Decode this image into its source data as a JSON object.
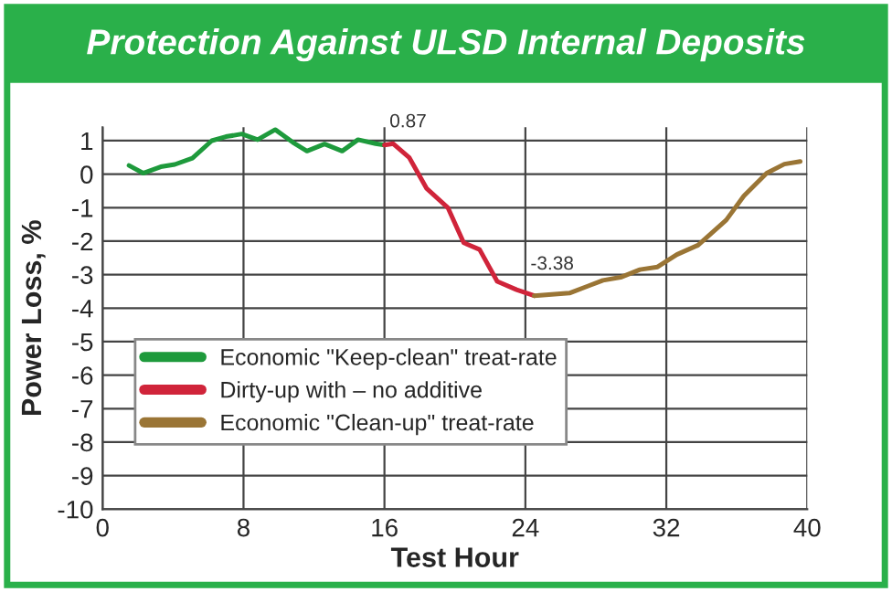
{
  "chart_data": {
    "type": "line",
    "title": "Protection Against ULSD Internal Deposits",
    "xlabel": "Test Hour",
    "ylabel": "Power Loss, %",
    "series": [
      {
        "name": "Economic \"Keep-clean\" treat-rate",
        "color": "#1e9a3c",
        "x": [
          1.5,
          2.3,
          3.3,
          4.1,
          5.1,
          6.2,
          7.0,
          7.9,
          8.8,
          9.8,
          10.8,
          11.6,
          12.6,
          13.6,
          14.5,
          15.5,
          16
        ],
        "values": [
          0.26,
          0.03,
          0.22,
          0.29,
          0.48,
          1.0,
          1.12,
          1.2,
          1.03,
          1.33,
          0.95,
          0.69,
          0.9,
          0.69,
          1.03,
          0.91,
          0.87
        ]
      },
      {
        "name": "Dirty-up with – no additive",
        "color": "#d0243a",
        "x": [
          16,
          16.5,
          17.4,
          18.4,
          19.6,
          20.5,
          21.4,
          22.4,
          23.5,
          24.5
        ],
        "values": [
          0.87,
          0.91,
          0.5,
          -0.43,
          -1.0,
          -2.05,
          -2.25,
          -3.2,
          -3.45,
          -3.63
        ]
      },
      {
        "name": "Economic \"Clean-up\" treat-rate",
        "color": "#9a7535",
        "x": [
          24.5,
          26.5,
          27.5,
          28.4,
          29.4,
          30.5,
          31.5,
          32.6,
          33.8,
          35.4,
          36.4,
          37.7,
          38.7,
          39.6
        ],
        "values": [
          -3.63,
          -3.55,
          -3.35,
          -3.17,
          -3.08,
          -2.85,
          -2.77,
          -2.4,
          -2.12,
          -1.37,
          -0.65,
          0.03,
          0.3,
          0.38
        ]
      }
    ],
    "annotations": [
      {
        "text": "0.87",
        "x": 16,
        "y": 0.87
      },
      {
        "text": "-3.38",
        "x": 24,
        "y": -3.38
      }
    ],
    "xlim": [
      0,
      40
    ],
    "xticks": [
      0,
      8,
      16,
      24,
      32,
      40
    ],
    "ylim": [
      -10,
      1.4
    ],
    "yticks": [
      -10,
      -9,
      -8,
      -7,
      -6,
      -5,
      -4,
      -3,
      -2,
      -1,
      0,
      1
    ],
    "grid": true,
    "legend": "bottom left",
    "line_style": "solid",
    "marker": "none"
  }
}
